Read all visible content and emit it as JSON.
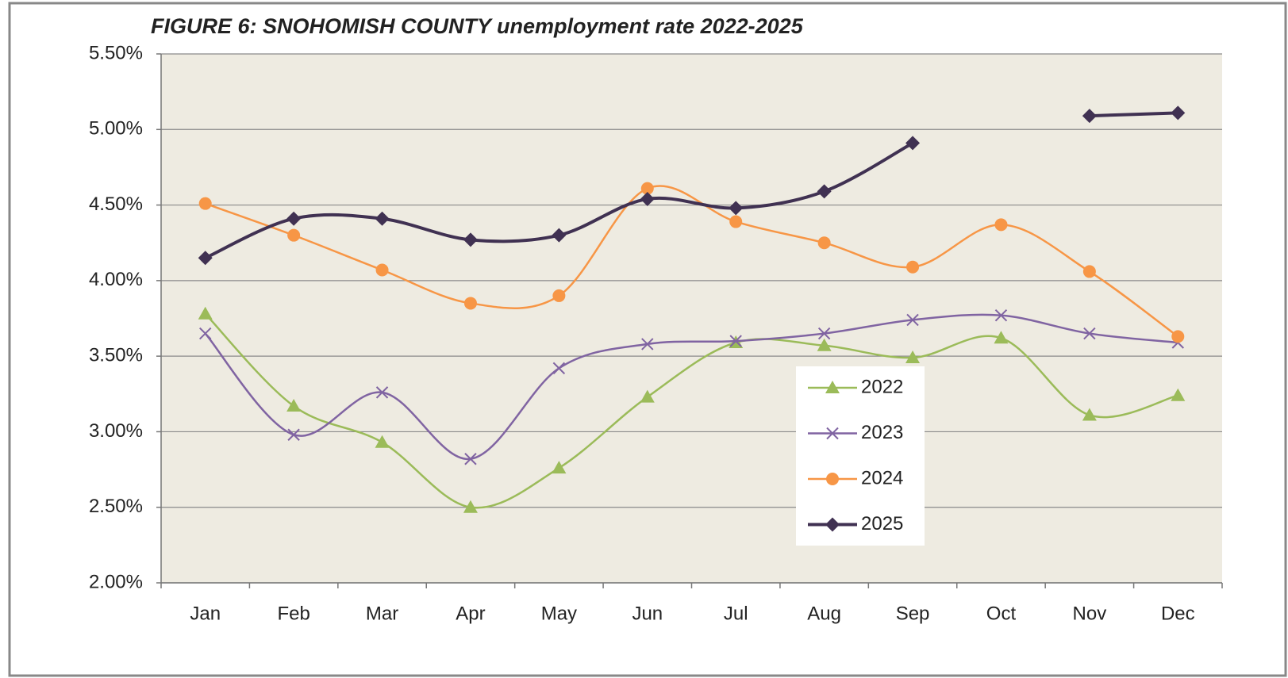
{
  "chart_data": {
    "type": "line",
    "title": "FIGURE 6: SNOHOMISH COUNTY unemployment rate 2022-2025",
    "categories": [
      "Jan",
      "Feb",
      "Mar",
      "Apr",
      "May",
      "Jun",
      "Jul",
      "Aug",
      "Sep",
      "Oct",
      "Nov",
      "Dec"
    ],
    "series": [
      {
        "name": "2022",
        "color": "#9bbb59",
        "marker": "triangle",
        "values": [
          3.78,
          3.17,
          2.93,
          2.5,
          2.76,
          3.23,
          3.59,
          3.57,
          3.49,
          3.62,
          3.11,
          3.24
        ]
      },
      {
        "name": "2023",
        "color": "#8064a2",
        "marker": "x",
        "values": [
          3.65,
          2.98,
          3.26,
          2.82,
          3.42,
          3.58,
          3.6,
          3.65,
          3.74,
          3.77,
          3.65,
          3.59
        ]
      },
      {
        "name": "2024",
        "color": "#f79646",
        "marker": "circle",
        "values": [
          4.51,
          4.3,
          4.07,
          3.85,
          3.9,
          4.61,
          4.39,
          4.25,
          4.09,
          4.37,
          4.06,
          3.63
        ]
      },
      {
        "name": "2025",
        "color": "#403152",
        "marker": "diamond",
        "values": [
          4.15,
          4.41,
          4.41,
          4.27,
          4.3,
          4.54,
          4.48,
          4.59,
          4.91,
          null,
          5.09,
          5.11
        ]
      }
    ],
    "ylim": [
      2,
      5.5
    ],
    "yticks": [
      {
        "value": 2,
        "label": "2.00%"
      },
      {
        "value": 2.5,
        "label": "2.50%"
      },
      {
        "value": 3,
        "label": "3.00%"
      },
      {
        "value": 3.5,
        "label": "3.50%"
      },
      {
        "value": 4,
        "label": "4.00%"
      },
      {
        "value": 4.5,
        "label": "4.50%"
      },
      {
        "value": 5,
        "label": "5.00%"
      },
      {
        "value": 5.5,
        "label": "5.50%"
      }
    ],
    "grid": true,
    "smooth": true,
    "legend": "lower right"
  }
}
